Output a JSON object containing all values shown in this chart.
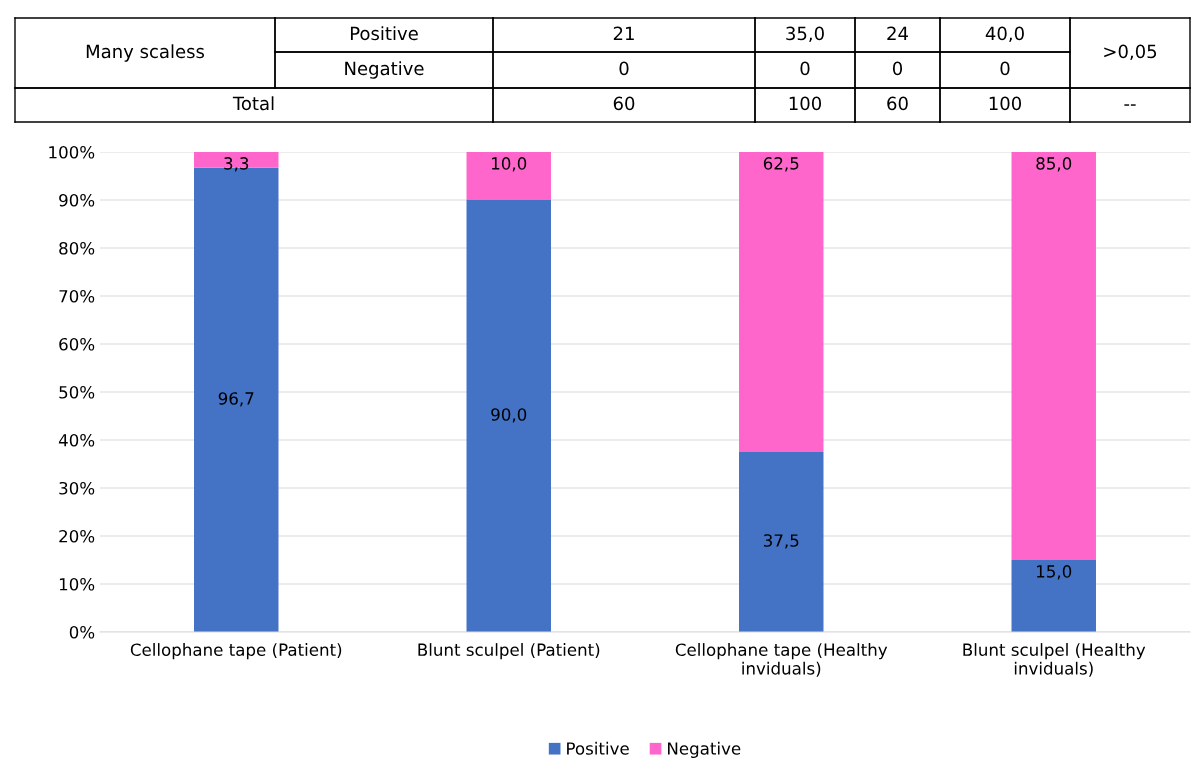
{
  "chart_data": [
    {
      "type": "other",
      "annotations": [
        "Many scaless",
        "Positive",
        "21",
        "35,0",
        "24",
        "40,0",
        ">0,05",
        "Negative",
        "0",
        "0",
        "0",
        "0",
        "Total",
        "60",
        "100",
        "60",
        "100",
        "--"
      ]
    },
    {
      "type": "bar",
      "stacked": true,
      "categories": [
        "Cellophane tape (Patient)",
        "Blunt sculpel (Patient)",
        "Cellophane tape (Healthy\ninviduals)",
        "Blunt sculpel (Healthy\ninviduals)"
      ],
      "series": [
        {
          "name": "Positive",
          "color": "#4472c4",
          "values": [
            96.7,
            90.0,
            37.5,
            15.0
          ],
          "value_labels": [
            "96,7",
            "90,0",
            "37,5",
            "15,0"
          ]
        },
        {
          "name": "Negative",
          "color": "#ff66cc",
          "values": [
            3.3,
            10.0,
            62.5,
            85.0
          ],
          "value_labels": [
            "3,3",
            "10,0",
            "62,5",
            "85,0"
          ]
        }
      ],
      "ylim": [
        0,
        100
      ],
      "yticks": [
        {
          "value": 0,
          "label": "0%"
        },
        {
          "value": 10,
          "label": "10%"
        },
        {
          "value": 20,
          "label": "20%"
        },
        {
          "value": 30,
          "label": "30%"
        },
        {
          "value": 40,
          "label": "40%"
        },
        {
          "value": 50,
          "label": "50%"
        },
        {
          "value": 60,
          "label": "60%"
        },
        {
          "value": 70,
          "label": "70%"
        },
        {
          "value": 80,
          "label": "80%"
        },
        {
          "value": 90,
          "label": "90%"
        },
        {
          "value": 100,
          "label": "100%"
        }
      ],
      "grid": "y",
      "legend": "bottom"
    }
  ]
}
